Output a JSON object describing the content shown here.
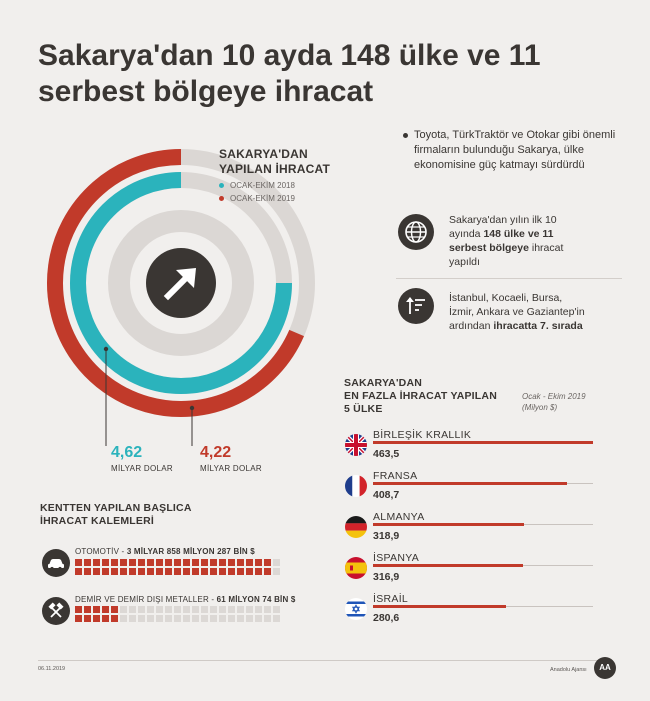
{
  "title": "Sakarya'dan 10 ayda 148 ülke ve 11 serbest bölgeye ihracat",
  "donut": {
    "title_line1": "SAKARYA'DAN",
    "title_line2": "YAPILAN İHRACAT",
    "legend": [
      {
        "label": "OCAK-EKİM 2018",
        "color": "#2bb3bc"
      },
      {
        "label": "OCAK-EKİM 2019",
        "color": "#c13a2a"
      }
    ],
    "value_2018": "4,62",
    "value_2019": "4,22",
    "unit": "MİLYAR DOLAR",
    "icon": "arrow-up-right-icon"
  },
  "notes": {
    "bullet": "Toyota, TürkTraktör ve Otokar gibi önemli firmaların bulunduğu Sakarya, ülke ekonomisine güç katmayı sürdürdü",
    "info1": {
      "pre": "Sakarya'dan yılın ilk 10 ayında ",
      "bold": "148 ülke ve 11 serbest bölgeye",
      "post": " ihracat yapıldı",
      "icon": "globe-icon"
    },
    "info2": {
      "pre": "İstanbul, Kocaeli, Bursa, İzmir, Ankara ve Gaziantep'in ardından ",
      "bold": "ihracatta 7. sırada",
      "post": "",
      "icon": "sort-descending-icon"
    }
  },
  "countries": {
    "title_line1": "SAKARYA'DAN",
    "title_line2": "EN FAZLA İHRACAT YAPILAN",
    "title_line3": "5 ÜLKE",
    "subtitle_line1": "Ocak - Ekim 2019",
    "subtitle_line2": "(Milyon $)"
  },
  "items": {
    "title_line1": "KENTTEN YAPILAN BAŞLICA",
    "title_line2": "İHRACAT KALEMLERİ",
    "list": [
      {
        "name": "OTOMOTİV",
        "value": "3 MİLYAR 858 MİLYON 287 BİN $",
        "icon": "car-icon",
        "filled_squares": 44,
        "total_squares": 46
      },
      {
        "name": "DEMİR VE DEMİR DIŞI METALLER",
        "value": "61 MİLYON 74 BİN $",
        "icon": "hammers-icon",
        "filled_squares": 10,
        "total_squares": 46
      }
    ]
  },
  "footer": {
    "date": "06.11.2019",
    "agency": "Anadolu Ajansı",
    "logo_text": "AA"
  },
  "chart_data": [
    {
      "type": "pie",
      "title": "SAKARYA'DAN YAPILAN İHRACAT",
      "series": [
        {
          "name": "OCAK-EKİM 2018",
          "value": 4.62,
          "unit": "MİLYAR DOLAR",
          "color": "#2bb3bc"
        },
        {
          "name": "OCAK-EKİM 2019",
          "value": 4.22,
          "unit": "MİLYAR DOLAR",
          "color": "#c13a2a"
        }
      ]
    },
    {
      "type": "bar",
      "title": "SAKARYA'DAN EN FAZLA İHRACAT YAPILAN 5 ÜLKE",
      "subtitle": "Ocak - Ekim 2019 (Milyon $)",
      "categories": [
        "BİRLEŞİK KRALLIK",
        "FRANSA",
        "ALMANYA",
        "İSPANYA",
        "İSRAİL"
      ],
      "values": [
        463.5,
        408.7,
        318.9,
        316.9,
        280.6
      ],
      "value_labels": [
        "463,5",
        "408,7",
        "318,9",
        "316,9",
        "280,6"
      ],
      "flags": [
        "uk-flag-icon",
        "france-flag-icon",
        "germany-flag-icon",
        "spain-flag-icon",
        "israel-flag-icon"
      ],
      "color": "#c13a2a"
    }
  ]
}
